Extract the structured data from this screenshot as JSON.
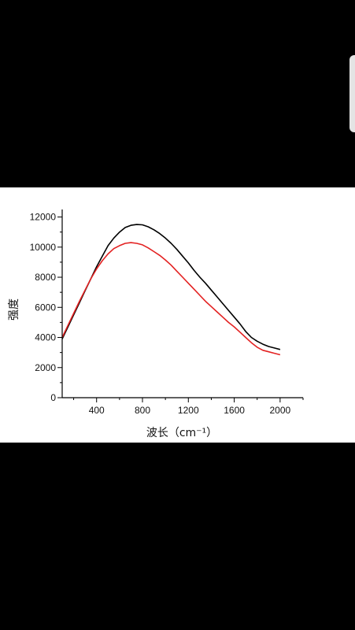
{
  "chart_data": {
    "type": "line",
    "xlabel": "波长（cm⁻¹）",
    "ylabel": "强度",
    "xlim": [
      100,
      2200
    ],
    "ylim": [
      0,
      12500
    ],
    "x_ticks": [
      400,
      800,
      1200,
      1600,
      2000
    ],
    "x_tick_labels": [
      "400",
      "800",
      "1200",
      "1600",
      "2000"
    ],
    "y_ticks": [
      0,
      2000,
      4000,
      6000,
      8000,
      10000,
      12000
    ],
    "y_tick_labels": [
      "0",
      "2000",
      "4000",
      "6000",
      "8000",
      "10000",
      "12000"
    ],
    "grid": false,
    "legend": "none",
    "series": [
      {
        "color": "#000000",
        "x": [
          100,
          150,
          200,
          250,
          300,
          350,
          400,
          450,
          500,
          550,
          600,
          650,
          700,
          750,
          800,
          850,
          900,
          950,
          1000,
          1050,
          1100,
          1150,
          1200,
          1250,
          1300,
          1350,
          1400,
          1450,
          1500,
          1550,
          1600,
          1650,
          1700,
          1750,
          1800,
          1850,
          1900,
          1950,
          2000
        ],
        "y": [
          3900,
          4700,
          5500,
          6300,
          7100,
          7900,
          8700,
          9400,
          10100,
          10600,
          11000,
          11300,
          11450,
          11500,
          11480,
          11350,
          11150,
          10900,
          10600,
          10250,
          9850,
          9400,
          8950,
          8450,
          8000,
          7600,
          7150,
          6700,
          6250,
          5800,
          5350,
          4900,
          4400,
          4000,
          3750,
          3550,
          3400,
          3300,
          3200
        ]
      },
      {
        "color": "#e32222",
        "x": [
          100,
          150,
          200,
          250,
          300,
          350,
          400,
          450,
          500,
          550,
          600,
          650,
          700,
          750,
          800,
          850,
          900,
          950,
          1000,
          1050,
          1100,
          1150,
          1200,
          1250,
          1300,
          1350,
          1400,
          1450,
          1500,
          1550,
          1600,
          1650,
          1700,
          1750,
          1800,
          1850,
          1900,
          1950,
          2000
        ],
        "y": [
          4000,
          4800,
          5600,
          6400,
          7150,
          7900,
          8550,
          9100,
          9550,
          9900,
          10100,
          10250,
          10300,
          10250,
          10150,
          9950,
          9700,
          9450,
          9150,
          8800,
          8400,
          8000,
          7600,
          7200,
          6800,
          6400,
          6050,
          5700,
          5350,
          5000,
          4700,
          4350,
          4000,
          3650,
          3350,
          3150,
          3050,
          2950,
          2850
        ]
      }
    ]
  }
}
